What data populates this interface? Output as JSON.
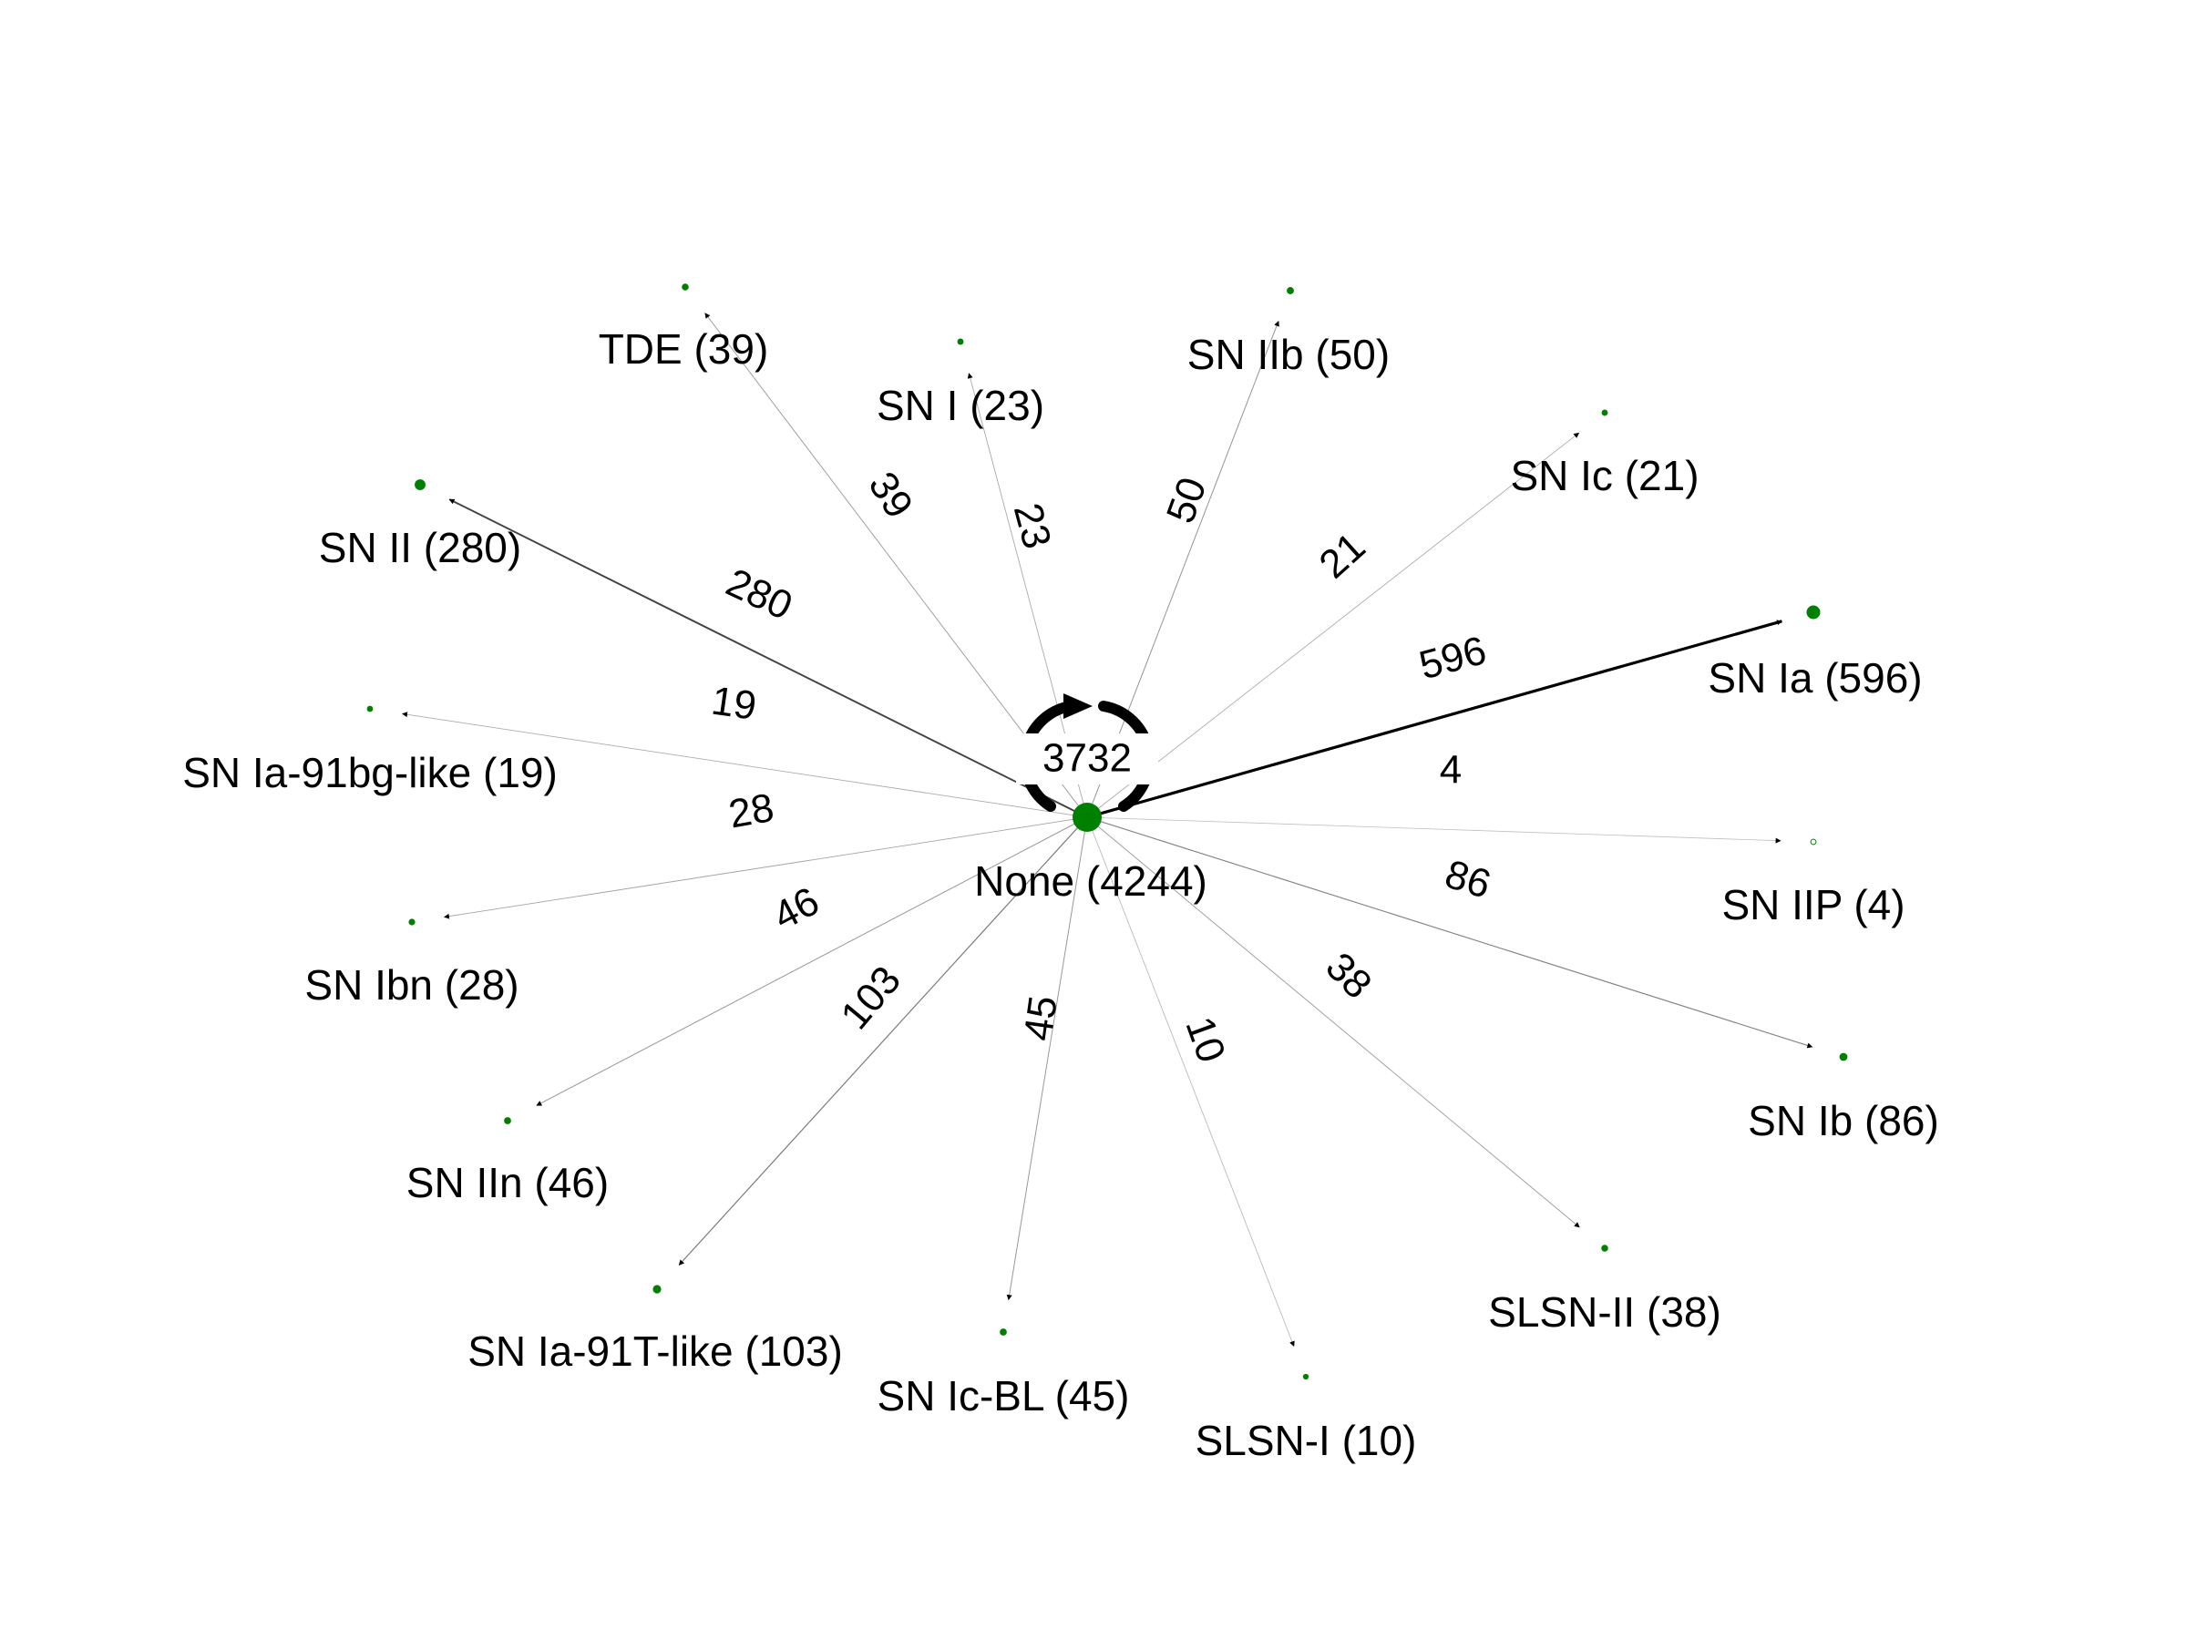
{
  "graph": {
    "source": {
      "id": "none",
      "label": "None (4244)",
      "self_loop": {
        "label": "3732",
        "count": 3732
      },
      "color": "#008000"
    },
    "targets": [
      {
        "id": "sn-ia",
        "label": "SN Ia (596)",
        "edge_label": "596",
        "count": 596
      },
      {
        "id": "sn-ii",
        "label": "SN II (280)",
        "edge_label": "280",
        "count": 280
      },
      {
        "id": "sn-ia-91t-like",
        "label": "SN Ia-91T-like (103)",
        "edge_label": "103",
        "count": 103
      },
      {
        "id": "sn-ib",
        "label": "SN Ib (86)",
        "edge_label": "86",
        "count": 86
      },
      {
        "id": "sn-iib",
        "label": "SN IIb (50)",
        "edge_label": "50",
        "count": 50
      },
      {
        "id": "sn-iin",
        "label": "SN IIn (46)",
        "edge_label": "46",
        "count": 46
      },
      {
        "id": "sn-ic-bl",
        "label": "SN Ic-BL (45)",
        "edge_label": "45",
        "count": 45
      },
      {
        "id": "tde",
        "label": "TDE (39)",
        "edge_label": "39",
        "count": 39
      },
      {
        "id": "slsn-ii",
        "label": "SLSN-II (38)",
        "edge_label": "38",
        "count": 38
      },
      {
        "id": "sn-ibn",
        "label": "SN Ibn (28)",
        "edge_label": "28",
        "count": 28
      },
      {
        "id": "sn-i",
        "label": "SN I (23)",
        "edge_label": "23",
        "count": 23
      },
      {
        "id": "sn-ic",
        "label": "SN Ic (21)",
        "edge_label": "21",
        "count": 21
      },
      {
        "id": "sn-ia-91bg-like",
        "label": "SN Ia-91bg-like (19)",
        "edge_label": "19",
        "count": 19
      },
      {
        "id": "slsn-i",
        "label": "SLSN-I (10)",
        "edge_label": "10",
        "count": 10
      },
      {
        "id": "sn-iip",
        "label": "SN IIP (4)",
        "edge_label": "4",
        "count": 4
      }
    ],
    "colors": {
      "node": "#008000",
      "edge": "#000000",
      "label": "#000000"
    }
  }
}
